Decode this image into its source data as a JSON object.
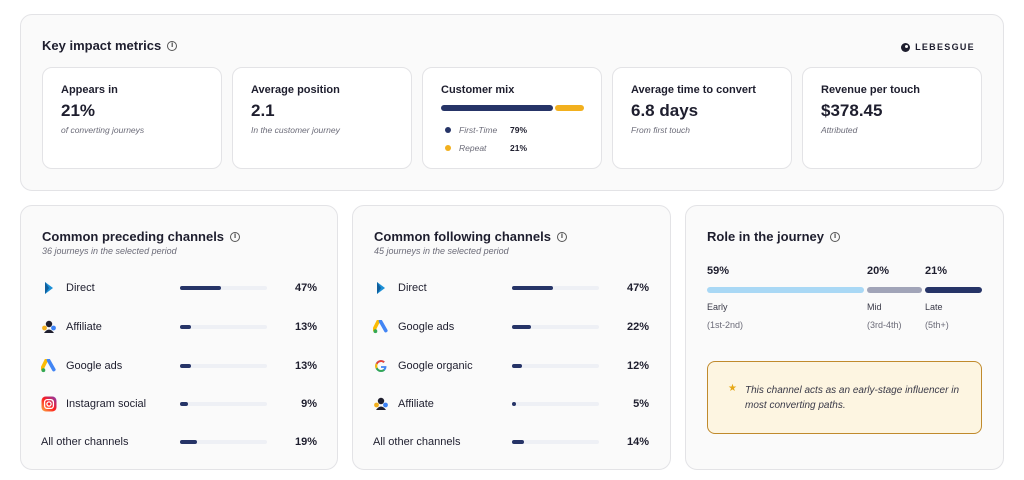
{
  "logo_text": "LEBESGUE",
  "key_metrics": {
    "title": "Key impact metrics",
    "appears_in": {
      "label": "Appears in",
      "value": "21%",
      "note": "of converting journeys"
    },
    "average_position": {
      "label": "Average position",
      "value": "2.1",
      "note": "In the customer journey"
    },
    "customer_mix": {
      "label": "Customer mix",
      "items": [
        {
          "name": "First-Time",
          "pct": "79%",
          "share": 0.79,
          "color": "#263467"
        },
        {
          "name": "Repeat",
          "pct": "21%",
          "share": 0.21,
          "color": "#f2b01e"
        }
      ]
    },
    "time_to_convert": {
      "label": "Average time to convert",
      "value": "6.8 days",
      "note": "From first touch"
    },
    "revenue_per_touch": {
      "label": "Revenue per touch",
      "value": "$378.45",
      "note": "Attributed"
    }
  },
  "preceding": {
    "title": "Common preceding channels",
    "subtitle": "36 journeys in the selected period",
    "rows": [
      {
        "name": "Direct",
        "pct": "47%",
        "value": 47,
        "icon": "direct-icon"
      },
      {
        "name": "Affiliate",
        "pct": "13%",
        "value": 13,
        "icon": "affiliate-icon"
      },
      {
        "name": "Google ads",
        "pct": "13%",
        "value": 13,
        "icon": "google-ads-icon"
      },
      {
        "name": "Instagram social",
        "pct": "9%",
        "value": 9,
        "icon": "instagram-icon"
      },
      {
        "name": "All other channels",
        "pct": "19%",
        "value": 19,
        "icon": ""
      }
    ]
  },
  "following": {
    "title": "Common following channels",
    "subtitle": "45 journeys in the selected period",
    "rows": [
      {
        "name": "Direct",
        "pct": "47%",
        "value": 47,
        "icon": "direct-icon"
      },
      {
        "name": "Google ads",
        "pct": "22%",
        "value": 22,
        "icon": "google-ads-icon"
      },
      {
        "name": "Google organic",
        "pct": "12%",
        "value": 12,
        "icon": "google-icon"
      },
      {
        "name": "Affiliate",
        "pct": "5%",
        "value": 5,
        "icon": "affiliate-icon"
      },
      {
        "name": "All other channels",
        "pct": "14%",
        "value": 14,
        "icon": ""
      }
    ]
  },
  "role": {
    "title": "Role in the journey",
    "stages": [
      {
        "pct": "59%",
        "label": "Early",
        "range": "(1st-2nd)",
        "color": "#a9d8f5"
      },
      {
        "pct": "20%",
        "label": "Mid",
        "range": "(3rd-4th)",
        "color": "#a1a4b8"
      },
      {
        "pct": "21%",
        "label": "Late",
        "range": "(5th+)",
        "color": "#263467"
      }
    ],
    "insight": "This channel acts as an early-stage influencer in most converting paths."
  }
}
